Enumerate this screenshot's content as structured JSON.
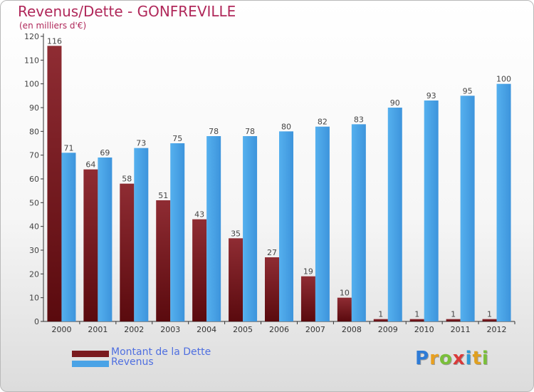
{
  "chart_data": {
    "type": "bar",
    "title": "Revenus/Dette - GONFREVILLE",
    "subtitle": "(en milliers d'€)",
    "categories": [
      "2000",
      "2001",
      "2002",
      "2003",
      "2004",
      "2005",
      "2006",
      "2007",
      "2008",
      "2009",
      "2010",
      "2011",
      "2012"
    ],
    "series": [
      {
        "name": "Montant de la Dette",
        "color": "#7a1a1e",
        "values": [
          116,
          64,
          58,
          51,
          43,
          35,
          27,
          19,
          10,
          1,
          1,
          1,
          1
        ]
      },
      {
        "name": "Revenus",
        "color": "#4aa3e6",
        "values": [
          71,
          69,
          73,
          75,
          78,
          78,
          80,
          82,
          83,
          90,
          93,
          95,
          100
        ]
      }
    ],
    "ylim": [
      0,
      120
    ],
    "yticks": [
      0,
      10,
      20,
      30,
      40,
      50,
      60,
      70,
      80,
      90,
      100,
      110,
      120
    ],
    "grid": false,
    "legend_position": "bottom-left"
  },
  "logo": {
    "letters": [
      {
        "char": "P",
        "color": "#2e7bd6"
      },
      {
        "char": "r",
        "color": "#e8a020"
      },
      {
        "char": "o",
        "color": "#7abf3a"
      },
      {
        "char": "x",
        "color": "#d93a3a"
      },
      {
        "char": "i",
        "color": "#2e9bd6"
      },
      {
        "char": "t",
        "color": "#e0a020"
      },
      {
        "char": "i",
        "color": "#7abf3a"
      }
    ]
  }
}
